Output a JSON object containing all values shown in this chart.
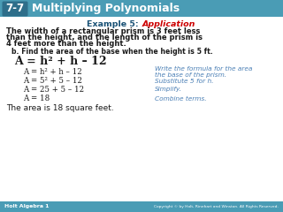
{
  "header_bg": "#4a9cb5",
  "header_box_bg": "#2e6e8a",
  "header_box_text": "7-7",
  "header_title": "Multiplying Polynomials",
  "body_bg": "#ffffff",
  "example_label": "Example 5: ",
  "example_highlight": "Application",
  "example_label_color": "#1a5276",
  "example_highlight_color": "#cc0000",
  "problem_line1": "The width of a rectangular prism is 3 feet less",
  "problem_line2": "than the height, and the length of the prism is",
  "problem_line3": "4 feet more than the height.",
  "sub_label": "b. Find the area of the base when the height is 5 ft.",
  "footer_bg": "#4a9cb5",
  "footer_left": "Holt Algebra 1",
  "footer_right": "Copyright © by Holt, Rinehart and Winston. All Rights Reserved.",
  "blue_note_color": "#4a7fb5",
  "dark_text": "#1a1a1a",
  "big_formula": "A = h² + h – 12",
  "steps": [
    [
      "A = h² + h – 12",
      "Write the formula for the area",
      "the base of the prism."
    ],
    [
      "A = 5² + 5 – 12",
      "Substitute 5 for h.",
      ""
    ],
    [
      "A = 25 + 5 – 12",
      "Simplify.",
      ""
    ],
    [
      "A = 18",
      "Combine terms.",
      ""
    ]
  ],
  "conclusion": "The area is 18 square feet."
}
